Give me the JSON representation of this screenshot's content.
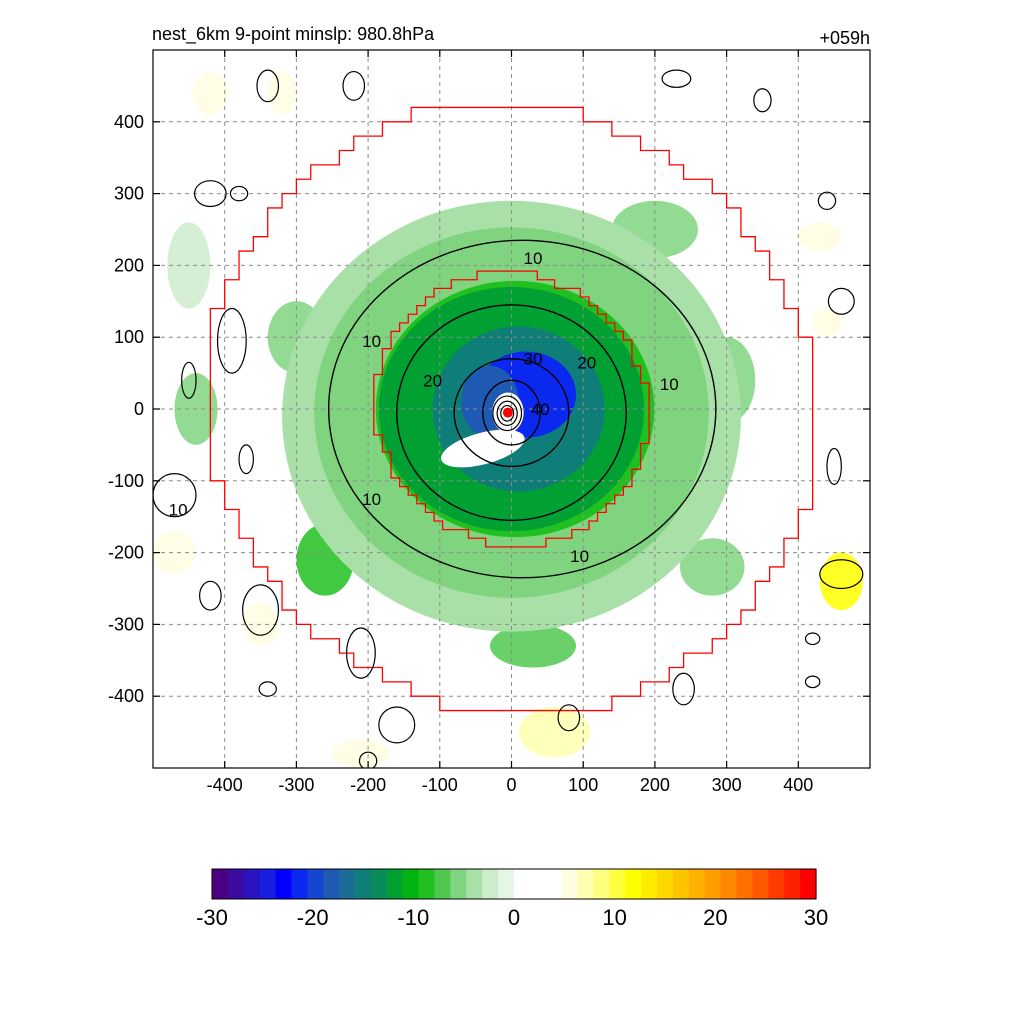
{
  "chart_data": {
    "type": "heatmap",
    "title_left": "nest_6km  9-point minslp: 980.8hPa",
    "title_right": "+059h",
    "xlabel": "",
    "ylabel": "",
    "xlim": [
      -500,
      500
    ],
    "ylim": [
      -500,
      500
    ],
    "xticks": [
      -400,
      -300,
      -200,
      -100,
      0,
      100,
      200,
      300,
      400
    ],
    "yticks": [
      -400,
      -300,
      -200,
      -100,
      0,
      100,
      200,
      300,
      400
    ],
    "grid": true,
    "center_marker": {
      "x": -5,
      "y": -5,
      "color": "#ff0000"
    },
    "contours": [
      {
        "level": 10,
        "label": "10"
      },
      {
        "level": 20,
        "label": "20"
      },
      {
        "level": 30,
        "label": "30"
      },
      {
        "level": 40,
        "label": "40"
      }
    ],
    "contour_labels": [
      {
        "text": "10",
        "x": 30,
        "y": 210
      },
      {
        "text": "10",
        "x": -195,
        "y": 95
      },
      {
        "text": "10",
        "x": 220,
        "y": 35
      },
      {
        "text": "10",
        "x": -195,
        "y": -125
      },
      {
        "text": "10",
        "x": 95,
        "y": -205
      },
      {
        "text": "10",
        "x": -465,
        "y": -140
      },
      {
        "text": "20",
        "x": -110,
        "y": 40
      },
      {
        "text": "20",
        "x": 105,
        "y": 65
      },
      {
        "text": "30",
        "x": 30,
        "y": 70
      },
      {
        "text": "40",
        "x": 40,
        "y": 0
      }
    ],
    "boundary_color": "#ff0000",
    "inner_boundary_radius": 190,
    "outer_boundary_radius": 425,
    "shaded_field_regions": [
      {
        "description": "strong negative core",
        "value": -22,
        "x": 20,
        "y": 20,
        "rx": 70,
        "ry": 60
      },
      {
        "description": "ring",
        "value": -12,
        "x": 0,
        "y": 0,
        "rx": 185,
        "ry": 170
      },
      {
        "description": "outer ring",
        "value": -6,
        "x": 0,
        "y": -10,
        "rx": 320,
        "ry": 300
      },
      {
        "description": "eye positive",
        "value": 2,
        "x": -40,
        "y": -55,
        "rx": 60,
        "ry": 22
      }
    ],
    "colorbar": {
      "min": -30,
      "max": 30,
      "ticks": [
        -30,
        -20,
        -10,
        0,
        10,
        20,
        30
      ],
      "colors": [
        "#4b0082",
        "#3c0aa0",
        "#2a14c0",
        "#1a1ee0",
        "#0000ff",
        "#0a28f0",
        "#1446d2",
        "#1e5ab4",
        "#1a6e96",
        "#107e78",
        "#088c5a",
        "#00a032",
        "#00b414",
        "#20c020",
        "#50c850",
        "#80d480",
        "#a8e0a8",
        "#cceccc",
        "#e6f6e6",
        "#ffffff",
        "#ffffff",
        "#ffffff",
        "#fffde0",
        "#ffffb0",
        "#ffff80",
        "#ffff40",
        "#ffff00",
        "#ffec00",
        "#ffd800",
        "#ffc400",
        "#ffb000",
        "#ff9c00",
        "#ff8800",
        "#ff7000",
        "#ff5800",
        "#ff3c00",
        "#ff2000",
        "#ff0000"
      ]
    }
  }
}
